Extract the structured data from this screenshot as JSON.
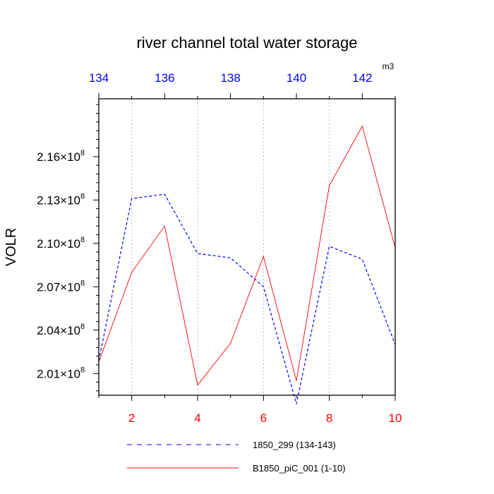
{
  "chart_data": {
    "type": "line",
    "title": "river channel total water storage",
    "units": "m3",
    "ylabel": "VOLR",
    "ylim": [
      199500000,
      220000000.0
    ],
    "yticks": [
      201000000.0,
      204000000.0,
      207000000.0,
      210000000.0,
      213000000.0,
      216000000.0
    ],
    "ytick_labels": [
      "2.01×10",
      "2.04×10",
      "2.07×10",
      "2.10×10",
      "2.13×10",
      "2.16×10"
    ],
    "ytick_exponent": "8",
    "bottom_axis": {
      "range": [
        1,
        10
      ],
      "ticks": [
        2,
        4,
        6,
        8,
        10
      ],
      "tick_labels": [
        "2",
        "4",
        "6",
        "8",
        "10"
      ],
      "color": "#ff0000"
    },
    "top_axis": {
      "range": [
        134,
        143
      ],
      "ticks": [
        134,
        136,
        138,
        140,
        142
      ],
      "tick_labels": [
        "134",
        "136",
        "138",
        "140",
        "142"
      ],
      "color": "#0000ff"
    },
    "grid": "vertical dotted",
    "legend_placement": "bottom",
    "series": [
      {
        "name": "1850_299 (134-143)",
        "axis": "top",
        "color": "#0000ff",
        "style": "dashed",
        "x": [
          134,
          135,
          136,
          137,
          138,
          139,
          140,
          141,
          142,
          143
        ],
        "y": [
          201900000,
          213100000,
          213400000,
          209300000,
          209000000,
          207000000,
          198900000,
          209800000,
          208900000,
          203000000
        ]
      },
      {
        "name": "B1850_piC_001 (1-10)",
        "axis": "bottom",
        "color": "#ff0000",
        "style": "solid",
        "x": [
          1,
          2,
          3,
          4,
          5,
          6,
          7,
          8,
          9,
          10
        ],
        "y": [
          201800000,
          208000000,
          211200000,
          200200000,
          203100000,
          209100000,
          200500000,
          214000000,
          218100000,
          209700000
        ]
      }
    ]
  }
}
